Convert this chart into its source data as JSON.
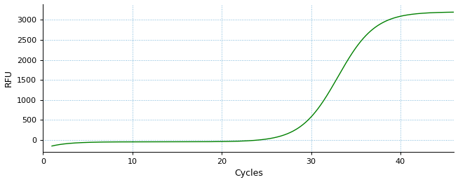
{
  "xlabel": "Cycles",
  "ylabel": "RFU",
  "line_color": "#008000",
  "background_color": "#ffffff",
  "grid_color": "#6baed6",
  "xlim": [
    0,
    46
  ],
  "ylim": [
    -300,
    3400
  ],
  "xticks": [
    0,
    10,
    20,
    30,
    40
  ],
  "yticks": [
    0,
    500,
    1000,
    1500,
    2000,
    2500,
    3000
  ],
  "sigmoid_L": 3250,
  "sigmoid_k": 0.48,
  "sigmoid_x0": 33.0,
  "plateau": 3200,
  "start_cycle": 1,
  "end_cycle": 46
}
